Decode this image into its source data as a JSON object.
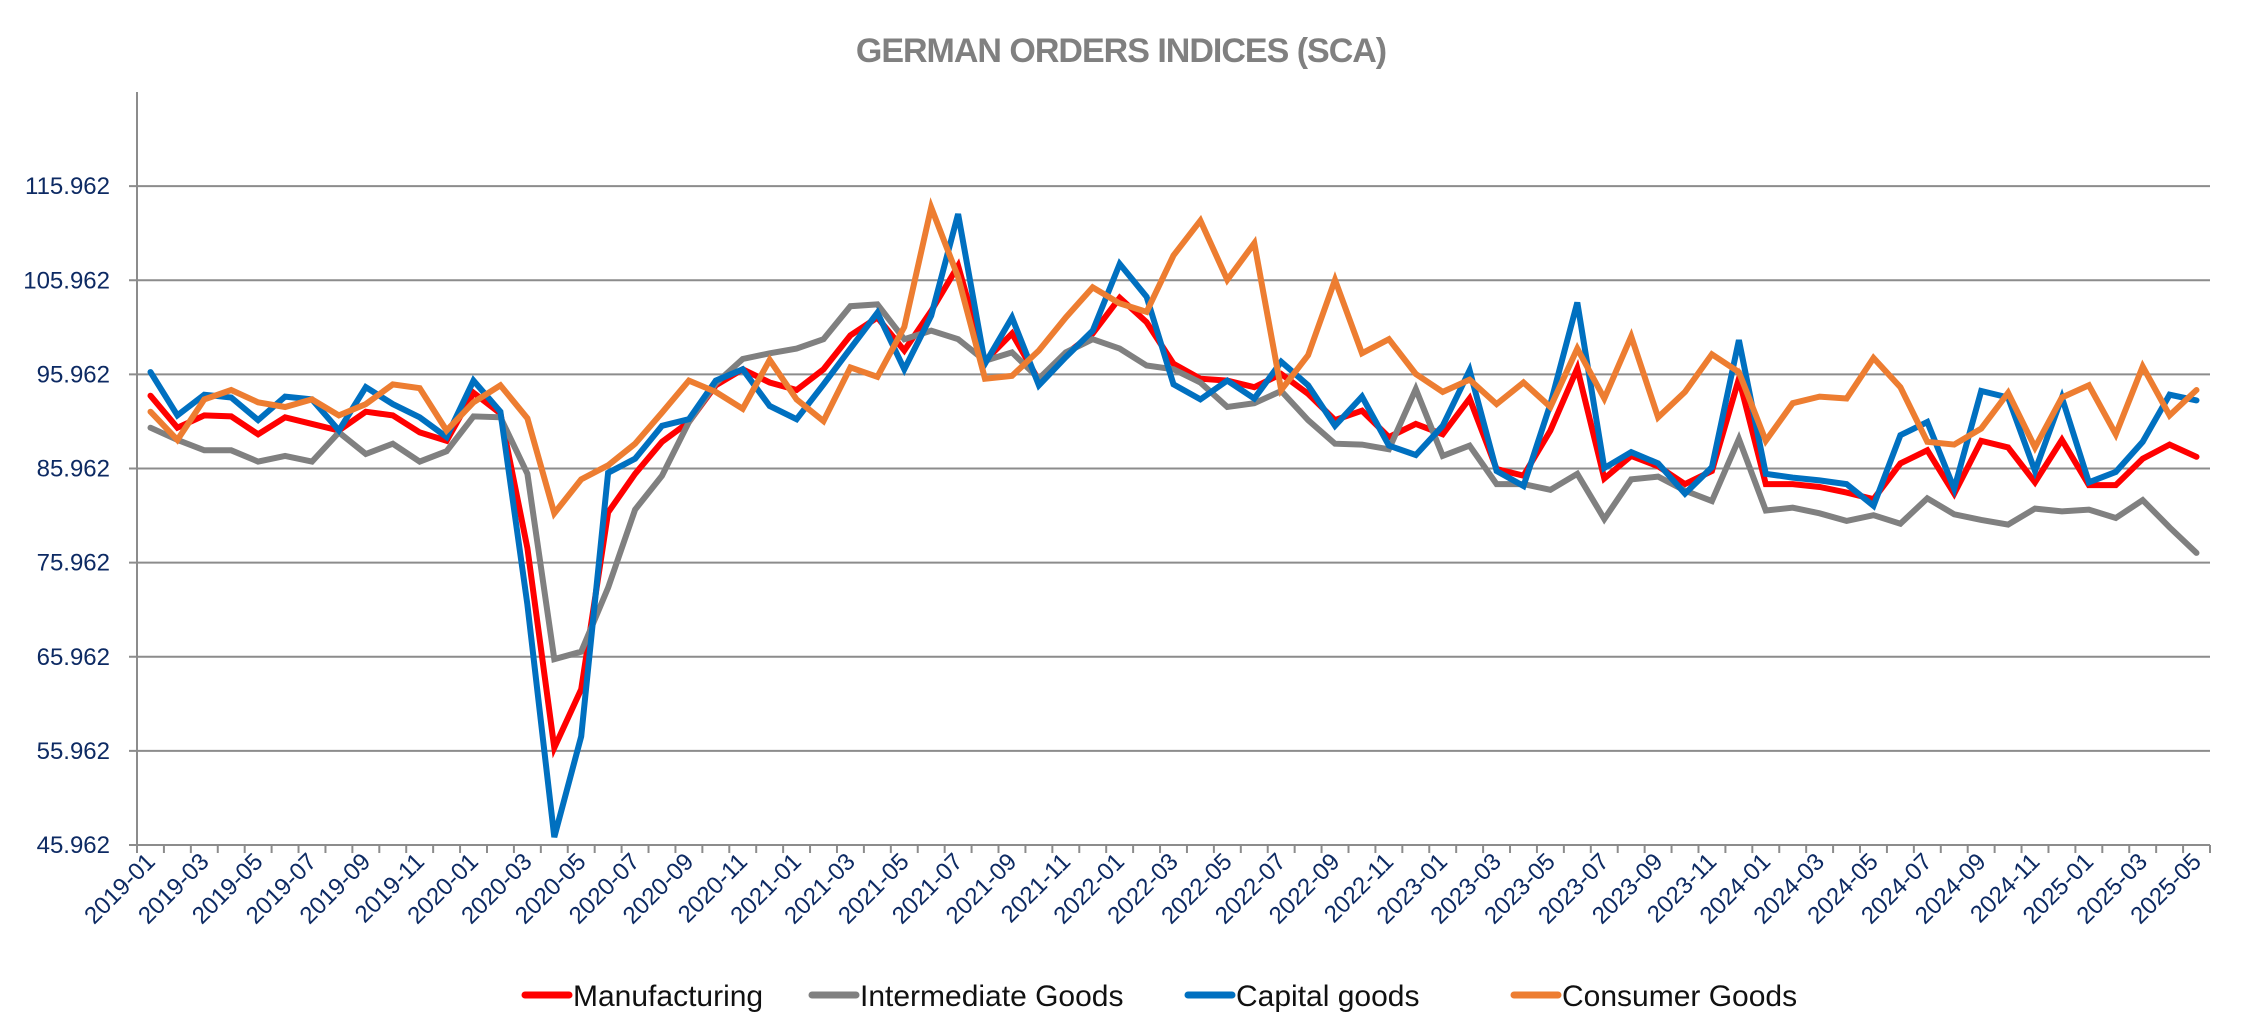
{
  "chart_data": {
    "type": "line",
    "title": "GERMAN ORDERS INDICES (SCA)",
    "xlabel": "",
    "ylabel": "",
    "ylim": [
      45.962,
      125.962
    ],
    "yticks": [
      45.962,
      55.962,
      65.962,
      75.962,
      85.962,
      95.962,
      105.962,
      115.962
    ],
    "ytick_labels": [
      "45.962",
      "55.962",
      "65.962",
      "75.962",
      "85.962",
      "95.962",
      "105.962",
      "115.962"
    ],
    "grid": true,
    "legend_position": "bottom",
    "x": [
      "2019-01",
      "2019-02",
      "2019-03",
      "2019-04",
      "2019-05",
      "2019-06",
      "2019-07",
      "2019-08",
      "2019-09",
      "2019-10",
      "2019-11",
      "2019-12",
      "2020-01",
      "2020-02",
      "2020-03",
      "2020-04",
      "2020-05",
      "2020-06",
      "2020-07",
      "2020-08",
      "2020-09",
      "2020-10",
      "2020-11",
      "2020-12",
      "2021-01",
      "2021-02",
      "2021-03",
      "2021-04",
      "2021-05",
      "2021-06",
      "2021-07",
      "2021-08",
      "2021-09",
      "2021-10",
      "2021-11",
      "2021-12",
      "2022-01",
      "2022-02",
      "2022-03",
      "2022-04",
      "2022-05",
      "2022-06",
      "2022-07",
      "2022-08",
      "2022-09",
      "2022-10",
      "2022-11",
      "2022-12",
      "2023-01",
      "2023-02",
      "2023-03",
      "2023-04",
      "2023-05",
      "2023-06",
      "2023-07",
      "2023-08",
      "2023-09",
      "2023-10",
      "2023-11",
      "2023-12",
      "2024-01",
      "2024-02",
      "2024-03",
      "2024-04",
      "2024-05",
      "2024-06",
      "2024-07",
      "2024-08",
      "2024-09",
      "2024-10",
      "2024-11",
      "2024-12",
      "2025-01",
      "2025-02",
      "2025-03",
      "2025-04",
      "2025-05"
    ],
    "xtick_labels": [
      "2019-01",
      "2019-03",
      "2019-05",
      "2019-07",
      "2019-09",
      "2019-11",
      "2020-01",
      "2020-03",
      "2020-05",
      "2020-07",
      "2020-09",
      "2020-11",
      "2021-01",
      "2021-03",
      "2021-05",
      "2021-07",
      "2021-09",
      "2021-11",
      "2022-01",
      "2022-03",
      "2022-05",
      "2022-07",
      "2022-09",
      "2022-11",
      "2023-01",
      "2023-03",
      "2023-05",
      "2023-07",
      "2023-09",
      "2023-11",
      "2024-01",
      "2024-03",
      "2024-05",
      "2024-07",
      "2024-09",
      "2024-11",
      "2025-01",
      "2025-03",
      "2025-05"
    ],
    "series": [
      {
        "name": "Manufacturing",
        "color": "#ff0000",
        "values": [
          93.7,
          90.3,
          91.6,
          91.5,
          89.6,
          91.4,
          90.7,
          90.0,
          92.0,
          91.6,
          89.8,
          88.9,
          94.0,
          91.8,
          77.5,
          56.3,
          62.5,
          81.3,
          85.4,
          88.8,
          90.9,
          94.8,
          96.5,
          95.1,
          94.3,
          96.5,
          100.1,
          102.0,
          98.5,
          102.7,
          107.5,
          97.4,
          100.3,
          95.3,
          98.1,
          100.3,
          104.1,
          101.5,
          97.1,
          95.5,
          95.3,
          94.6,
          96.0,
          93.9,
          91.1,
          92.1,
          89.3,
          90.7,
          89.6,
          93.4,
          85.9,
          85.2,
          90.0,
          96.6,
          84.9,
          87.3,
          86.2,
          84.3,
          85.7,
          95.5,
          84.3,
          84.3,
          84.0,
          83.4,
          82.7,
          86.5,
          87.9,
          83.3,
          88.9,
          88.2,
          84.5,
          89.0,
          84.2,
          84.2,
          87.0,
          88.5,
          87.2
        ]
      },
      {
        "name": "Intermediate Goods",
        "color": "#808080",
        "values": [
          90.3,
          89.0,
          87.9,
          87.9,
          86.7,
          87.3,
          86.7,
          89.8,
          87.5,
          88.6,
          86.7,
          87.8,
          91.5,
          91.4,
          85.4,
          65.7,
          66.5,
          73.3,
          81.6,
          85.2,
          90.9,
          95.0,
          97.6,
          98.2,
          98.7,
          99.7,
          103.2,
          103.4,
          99.7,
          100.6,
          99.7,
          97.4,
          98.3,
          95.5,
          98.3,
          99.7,
          98.7,
          96.9,
          96.5,
          95.1,
          92.5,
          92.9,
          94.2,
          91.1,
          88.6,
          88.5,
          88.0,
          94.4,
          87.3,
          88.4,
          84.3,
          84.3,
          83.7,
          85.4,
          80.6,
          84.8,
          85.1,
          83.6,
          82.5,
          89.1,
          81.5,
          81.8,
          81.2,
          80.4,
          81.0,
          80.1,
          82.8,
          81.1,
          80.5,
          80.0,
          81.7,
          81.4,
          81.6,
          80.7,
          82.6,
          79.7,
          77.0
        ]
      },
      {
        "name": "Capital goods",
        "color": "#0070c0",
        "values": [
          96.2,
          91.6,
          93.8,
          93.5,
          91.1,
          93.6,
          93.3,
          90.0,
          94.6,
          92.8,
          91.4,
          89.3,
          95.3,
          92.0,
          71.5,
          46.8,
          57.5,
          85.5,
          87.0,
          90.5,
          91.2,
          95.3,
          96.5,
          92.6,
          91.2,
          94.9,
          98.7,
          102.5,
          96.5,
          102.2,
          113.0,
          97.1,
          102.0,
          94.8,
          97.8,
          100.6,
          107.7,
          104.2,
          94.9,
          93.3,
          95.3,
          93.4,
          97.3,
          94.8,
          90.5,
          93.6,
          88.4,
          87.4,
          90.5,
          96.4,
          85.7,
          84.1,
          92.8,
          103.6,
          86.0,
          87.7,
          86.5,
          83.3,
          86.1,
          99.6,
          85.4,
          85.0,
          84.7,
          84.3,
          82.0,
          89.5,
          90.9,
          83.8,
          94.2,
          93.5,
          85.7,
          93.5,
          84.5,
          85.6,
          88.8,
          93.8,
          93.2
        ]
      },
      {
        "name": "Consumer Goods",
        "color": "#ed7d31",
        "values": [
          92.0,
          89.0,
          93.3,
          94.3,
          93.0,
          92.5,
          93.3,
          91.6,
          92.8,
          94.9,
          94.5,
          90.0,
          93.0,
          94.8,
          91.3,
          81.2,
          84.8,
          86.3,
          88.6,
          91.9,
          95.3,
          94.1,
          92.3,
          97.5,
          93.3,
          91.0,
          96.7,
          95.7,
          101.0,
          113.7,
          106.3,
          95.5,
          95.8,
          98.5,
          102.0,
          105.2,
          103.5,
          102.6,
          108.6,
          112.3,
          106.0,
          109.9,
          94.3,
          98.0,
          106.0,
          98.2,
          99.7,
          96.0,
          94.1,
          95.4,
          92.8,
          95.1,
          92.5,
          98.7,
          93.4,
          100.0,
          91.4,
          94.1,
          98.1,
          96.2,
          88.9,
          92.9,
          93.6,
          93.4,
          97.7,
          94.6,
          88.8,
          88.5,
          90.2,
          94.0,
          88.2,
          93.5,
          94.8,
          89.6,
          96.8,
          91.6,
          94.3
        ]
      }
    ]
  }
}
